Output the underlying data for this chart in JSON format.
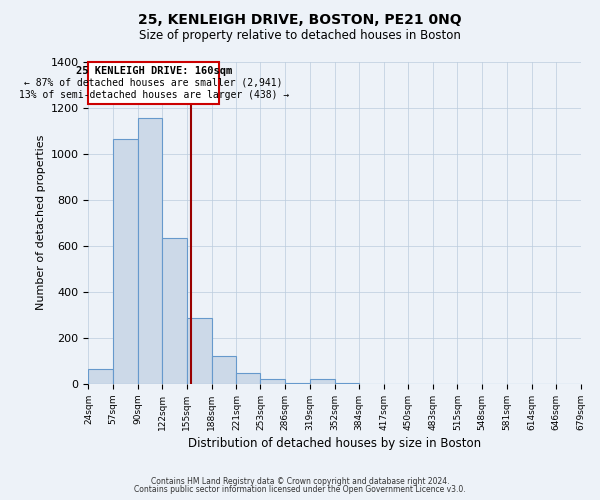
{
  "title": "25, KENLEIGH DRIVE, BOSTON, PE21 0NQ",
  "subtitle": "Size of property relative to detached houses in Boston",
  "xlabel": "Distribution of detached houses by size in Boston",
  "ylabel": "Number of detached properties",
  "bar_color": "#ccd9e8",
  "bar_edge_color": "#6699cc",
  "background_color": "#edf2f8",
  "grid_color": "#bbccdd",
  "annotation_text_line1": "25 KENLEIGH DRIVE: 160sqm",
  "annotation_text_line2": "← 87% of detached houses are smaller (2,941)",
  "annotation_text_line3": "13% of semi-detached houses are larger (438) →",
  "vline_color": "#990000",
  "footer_line1": "Contains HM Land Registry data © Crown copyright and database right 2024.",
  "footer_line2": "Contains public sector information licensed under the Open Government Licence v3.0.",
  "bin_labels": [
    "24sqm",
    "57sqm",
    "90sqm",
    "122sqm",
    "155sqm",
    "188sqm",
    "221sqm",
    "253sqm",
    "286sqm",
    "319sqm",
    "352sqm",
    "384sqm",
    "417sqm",
    "450sqm",
    "483sqm",
    "515sqm",
    "548sqm",
    "581sqm",
    "614sqm",
    "646sqm",
    "679sqm"
  ],
  "bin_edges": [
    24,
    57,
    90,
    122,
    155,
    188,
    221,
    253,
    286,
    319,
    352,
    384,
    417,
    450,
    483,
    515,
    548,
    581,
    614,
    646,
    679
  ],
  "values": [
    65,
    1065,
    1155,
    635,
    285,
    120,
    48,
    22,
    5,
    22,
    5,
    0,
    0,
    0,
    0,
    0,
    0,
    0,
    0,
    0
  ],
  "vline_x": 160,
  "ylim": [
    0,
    1400
  ],
  "yticks": [
    0,
    200,
    400,
    600,
    800,
    1000,
    1200,
    1400
  ],
  "annot_box_color": "#cc0000",
  "title_fontsize": 10,
  "subtitle_fontsize": 8.5
}
